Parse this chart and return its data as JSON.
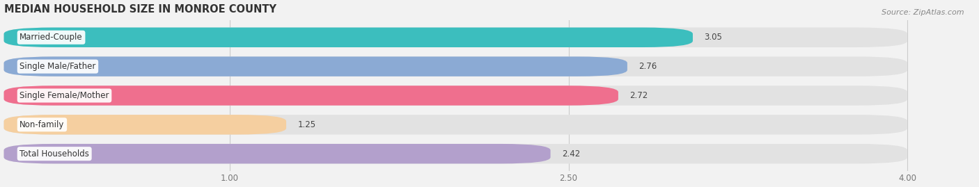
{
  "title": "MEDIAN HOUSEHOLD SIZE IN MONROE COUNTY",
  "source": "Source: ZipAtlas.com",
  "categories": [
    "Married-Couple",
    "Single Male/Father",
    "Single Female/Mother",
    "Non-family",
    "Total Households"
  ],
  "values": [
    3.05,
    2.76,
    2.72,
    1.25,
    2.42
  ],
  "bar_colors": [
    "#3CBEBE",
    "#8BAAD4",
    "#EF6F8E",
    "#F5CFA0",
    "#B3A0CC"
  ],
  "xlim": [
    0.0,
    4.3
  ],
  "xmin": 0.0,
  "xmax": 4.0,
  "xticks": [
    1.0,
    2.5,
    4.0
  ],
  "xtick_labels": [
    "1.00",
    "2.50",
    "4.00"
  ],
  "background_color": "#F2F2F2",
  "bar_bg_color": "#E2E2E2",
  "title_fontsize": 10.5,
  "source_fontsize": 8,
  "label_fontsize": 8.5,
  "value_fontsize": 8.5,
  "bar_height": 0.68,
  "bar_sep": 0.18
}
